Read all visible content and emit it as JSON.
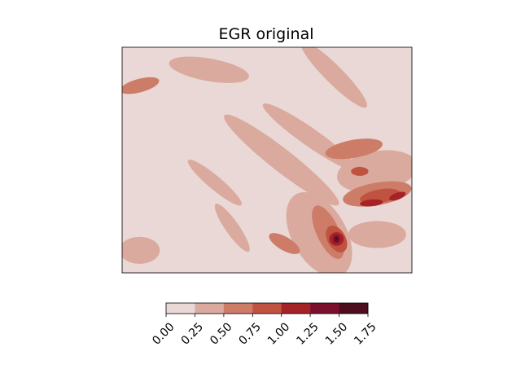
{
  "chart_data": {
    "type": "heatmap",
    "title": "EGR original",
    "xlabel": "",
    "ylabel": "",
    "axis_ticks_visible": false,
    "colorbar": {
      "orientation": "horizontal",
      "placement": "bottom",
      "levels": [
        0.0,
        0.25,
        0.5,
        0.75,
        1.0,
        1.25,
        1.5,
        1.75
      ],
      "tick_labels": [
        "0.00",
        "0.25",
        "0.50",
        "0.75",
        "1.00",
        "1.25",
        "1.50",
        "1.75"
      ],
      "colors": [
        "#e9d8d5",
        "#dbaa9e",
        "#cd7c68",
        "#bf5340",
        "#a52227",
        "#7c0f2b",
        "#4d0e1f"
      ]
    },
    "field_description_units": "EGR",
    "contour_regions": [
      {
        "level_index": 1,
        "cx": 0.3,
        "cy": 0.1,
        "rx": 0.14,
        "ry": 0.05,
        "rot": 10
      },
      {
        "level_index": 1,
        "cx": 0.73,
        "cy": 0.12,
        "rx": 0.16,
        "ry": 0.04,
        "rot": 45
      },
      {
        "level_index": 1,
        "cx": 0.55,
        "cy": 0.5,
        "rx": 0.25,
        "ry": 0.05,
        "rot": 38
      },
      {
        "level_index": 1,
        "cx": 0.65,
        "cy": 0.4,
        "rx": 0.2,
        "ry": 0.04,
        "rot": 35
      },
      {
        "level_index": 1,
        "cx": 0.32,
        "cy": 0.6,
        "rx": 0.12,
        "ry": 0.03,
        "rot": 40
      },
      {
        "level_index": 1,
        "cx": 0.88,
        "cy": 0.55,
        "rx": 0.14,
        "ry": 0.09,
        "rot": -10
      },
      {
        "level_index": 1,
        "cx": 0.68,
        "cy": 0.83,
        "rx": 0.16,
        "ry": 0.12,
        "rot": 60
      },
      {
        "level_index": 1,
        "cx": 0.88,
        "cy": 0.83,
        "rx": 0.1,
        "ry": 0.06,
        "rot": 0
      },
      {
        "level_index": 1,
        "cx": 0.06,
        "cy": 0.9,
        "rx": 0.07,
        "ry": 0.06,
        "rot": 0
      },
      {
        "level_index": 1,
        "cx": 0.38,
        "cy": 0.8,
        "rx": 0.1,
        "ry": 0.03,
        "rot": 55
      },
      {
        "level_index": 2,
        "cx": 0.06,
        "cy": 0.17,
        "rx": 0.07,
        "ry": 0.03,
        "rot": -15
      },
      {
        "level_index": 2,
        "cx": 0.8,
        "cy": 0.45,
        "rx": 0.1,
        "ry": 0.04,
        "rot": -10
      },
      {
        "level_index": 2,
        "cx": 0.88,
        "cy": 0.65,
        "rx": 0.12,
        "ry": 0.05,
        "rot": -10
      },
      {
        "level_index": 2,
        "cx": 0.71,
        "cy": 0.82,
        "rx": 0.1,
        "ry": 0.05,
        "rot": 65
      },
      {
        "level_index": 2,
        "cx": 0.56,
        "cy": 0.87,
        "rx": 0.06,
        "ry": 0.03,
        "rot": 30
      },
      {
        "level_index": 3,
        "cx": 0.89,
        "cy": 0.66,
        "rx": 0.07,
        "ry": 0.03,
        "rot": -10
      },
      {
        "level_index": 3,
        "cx": 0.82,
        "cy": 0.55,
        "rx": 0.03,
        "ry": 0.02,
        "rot": 0
      },
      {
        "level_index": 3,
        "cx": 0.74,
        "cy": 0.85,
        "rx": 0.05,
        "ry": 0.04,
        "rot": 60
      },
      {
        "level_index": 4,
        "cx": 0.86,
        "cy": 0.69,
        "rx": 0.04,
        "ry": 0.015,
        "rot": -5
      },
      {
        "level_index": 4,
        "cx": 0.95,
        "cy": 0.66,
        "rx": 0.03,
        "ry": 0.015,
        "rot": -20
      },
      {
        "level_index": 4,
        "cx": 0.74,
        "cy": 0.85,
        "rx": 0.025,
        "ry": 0.03,
        "rot": 0
      },
      {
        "level_index": 5,
        "cx": 0.74,
        "cy": 0.85,
        "rx": 0.012,
        "ry": 0.018,
        "rot": 0
      },
      {
        "level_index": 6,
        "cx": 0.74,
        "cy": 0.85,
        "rx": 0.005,
        "ry": 0.008,
        "rot": 0
      }
    ]
  }
}
